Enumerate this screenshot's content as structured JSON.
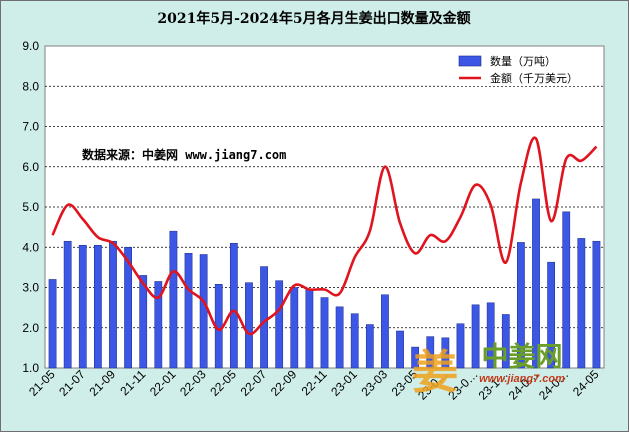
{
  "chart_data": {
    "type": "bar+line",
    "title": "2021年5月-2024年5月各月生姜出口数量及金额",
    "ylim": [
      1.0,
      9.0
    ],
    "yticks": [
      "1.0",
      "2.0",
      "3.0",
      "4.0",
      "5.0",
      "6.0",
      "7.0",
      "8.0",
      "9.0"
    ],
    "grid": true,
    "legend_position": "top-right",
    "categories": [
      "21-05",
      "21-06",
      "21-07",
      "21-08",
      "21-09",
      "21-10",
      "21-11",
      "21-12",
      "22-01",
      "22-02",
      "22-03",
      "22-04",
      "22-05",
      "22-06",
      "22-07",
      "22-08",
      "22-09",
      "22-10",
      "22-11",
      "22-12",
      "23-01",
      "23-02",
      "23-03",
      "23-04",
      "23-05",
      "23-06",
      "23-07",
      "23-08",
      "23-09",
      "23-10",
      "23-11",
      "23-12",
      "24-01",
      "24-02",
      "24-03",
      "24-04",
      "24-05"
    ],
    "xtick_labels": [
      "21-05",
      "21-07",
      "21-09",
      "21-11",
      "22-01",
      "22-03",
      "22-05",
      "22-07",
      "22-09",
      "22-11",
      "23-01",
      "23-03",
      "23-05",
      "23-07",
      "23-09",
      "23-11",
      "24-01",
      "24-03",
      "24-05"
    ],
    "xtick_display": [
      "21-05",
      "21-07",
      "21-09",
      "21-11",
      "22-01",
      "22-03",
      "22-05",
      "22-07",
      "22-09",
      "22-11",
      "23-01",
      "23-03",
      "23-05",
      "23-0…",
      "23-0…",
      "23-1…",
      "24-0…",
      "24-0…",
      "24-05"
    ],
    "series": [
      {
        "name": "数量（万吨）",
        "kind": "bar",
        "color": "#3c57e6",
        "values": [
          3.2,
          4.15,
          4.05,
          4.05,
          4.15,
          4.0,
          3.3,
          3.15,
          4.4,
          3.85,
          3.82,
          3.08,
          4.1,
          3.12,
          3.52,
          3.17,
          3.0,
          2.95,
          2.75,
          2.52,
          2.35,
          2.08,
          2.82,
          1.92,
          1.52,
          1.78,
          1.75,
          2.1,
          2.57,
          2.62,
          2.33,
          4.12,
          5.2,
          3.63,
          4.88,
          4.22,
          4.15
        ]
      },
      {
        "name": "金额（千万美元）",
        "kind": "line",
        "color": "#e0141e",
        "values": [
          4.3,
          5.05,
          4.7,
          4.25,
          4.1,
          3.65,
          3.1,
          2.75,
          3.4,
          2.95,
          2.65,
          1.95,
          2.42,
          1.85,
          2.15,
          2.45,
          3.05,
          2.95,
          2.95,
          2.85,
          3.75,
          4.4,
          6.0,
          4.6,
          3.85,
          4.3,
          4.15,
          4.75,
          5.55,
          5.05,
          3.62,
          5.6,
          6.7,
          4.65,
          6.2,
          6.15,
          6.5
        ]
      }
    ]
  },
  "legend": {
    "bar_label": "数量（万吨）",
    "line_label": "金额（千万美元）"
  },
  "source_note": "数据来源：中姜网 www.jiang7.com",
  "watermark": {
    "name": "中姜网",
    "url": "www.jiang7.com",
    "logo_text": "姜"
  }
}
